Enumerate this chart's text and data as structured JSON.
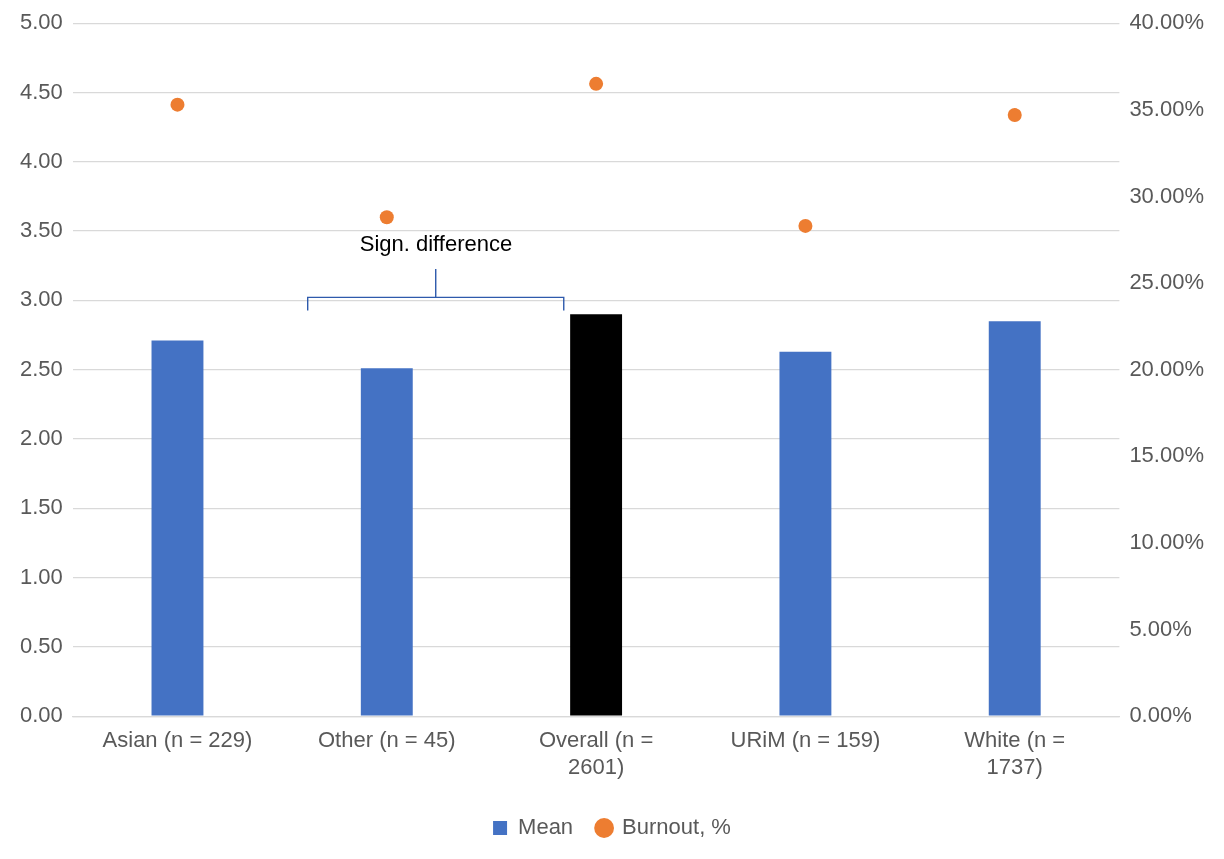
{
  "chart_data": {
    "type": "bar",
    "categories": [
      "Asian (n = 229)",
      "Other (n = 45)",
      "Overall (n = 2601)",
      "URiM (n = 159)",
      "White (n = 1737)"
    ],
    "series": [
      {
        "name": "Mean",
        "colors": [
          "#4472c4",
          "#4472c4",
          "#000000",
          "#4472c4",
          "#4472c4"
        ],
        "values": [
          2.71,
          2.51,
          2.9,
          2.63,
          2.85
        ]
      },
      {
        "name": "Burnout, %",
        "type": "scatter",
        "axis": "y2",
        "color": "#ed7d31",
        "x": [
          "Asian (n = 229)",
          "Other (n = 45)",
          "Overall (n = 2601)",
          "URiM (n = 159)",
          "White (n = 1737)"
        ],
        "values": [
          35.3,
          28.8,
          36.5,
          28.3,
          34.7
        ]
      }
    ],
    "ylim": [
      0,
      5
    ],
    "yticks": [
      {
        "value": 0,
        "label": "0.00"
      },
      {
        "value": 0.5,
        "label": "0.50"
      },
      {
        "value": 1,
        "label": "1.00"
      },
      {
        "value": 1.5,
        "label": "1.50"
      },
      {
        "value": 2,
        "label": "2.00"
      },
      {
        "value": 2.5,
        "label": "2.50"
      },
      {
        "value": 3,
        "label": "3.00"
      },
      {
        "value": 3.5,
        "label": "3.50"
      },
      {
        "value": 4,
        "label": "4.00"
      },
      {
        "value": 4.5,
        "label": "4.50"
      },
      {
        "value": 5,
        "label": "5.00"
      }
    ],
    "y2lim": [
      0,
      40
    ],
    "y2ticks": [
      {
        "value": 0,
        "label": "0.00%"
      },
      {
        "value": 5,
        "label": "5.00%"
      },
      {
        "value": 10,
        "label": "10.00%"
      },
      {
        "value": 15,
        "label": "15.00%"
      },
      {
        "value": 20,
        "label": "20.00%"
      },
      {
        "value": 25,
        "label": "25.00%"
      },
      {
        "value": 30,
        "label": "30.00%"
      },
      {
        "value": 35,
        "label": "35.00%"
      },
      {
        "value": 40,
        "label": "40.00%"
      }
    ],
    "annotations": [
      "Sign. difference"
    ],
    "grid": "y",
    "legend": "bottom",
    "marker": "circle"
  }
}
